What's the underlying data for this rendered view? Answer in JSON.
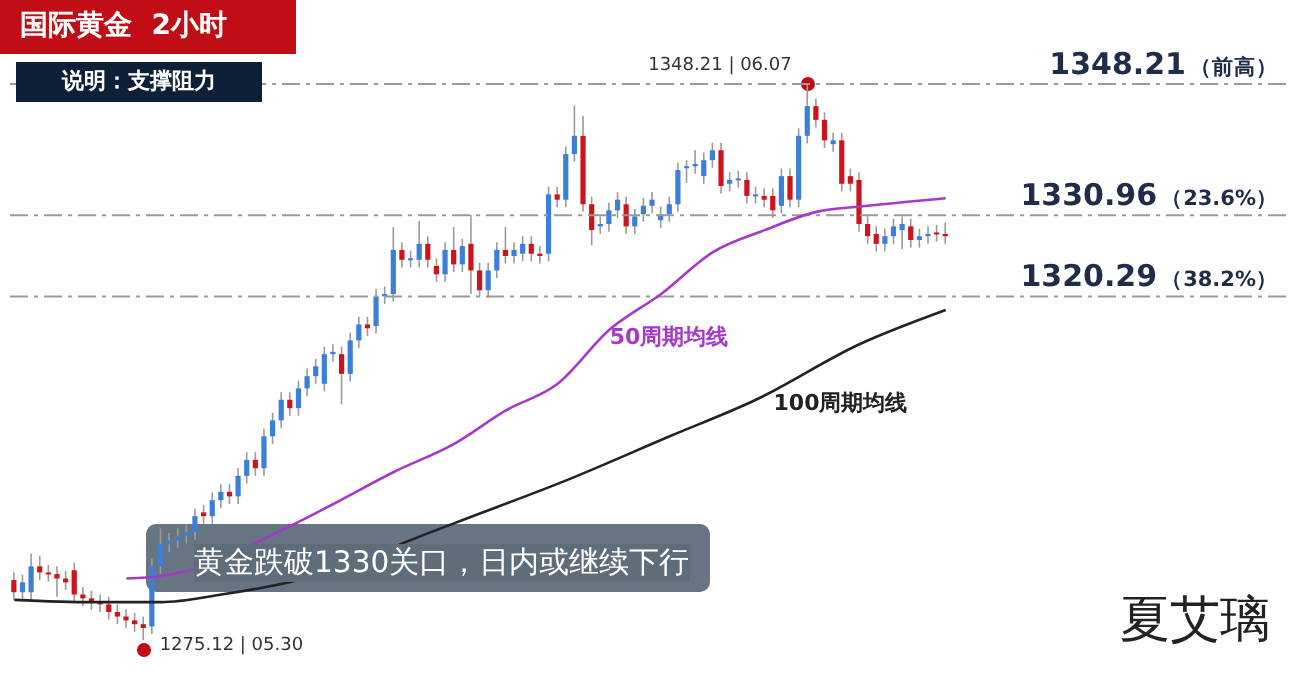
{
  "chart_data": {
    "type": "candlestick",
    "title": "国际黄金  2小时",
    "subtitle": "说明：支撑阻力",
    "tick_labels": false,
    "categories": [
      null,
      null,
      null,
      null,
      null,
      null,
      null,
      null,
      null,
      null,
      null,
      null,
      null,
      null,
      null,
      null,
      null,
      null,
      null,
      null,
      null,
      null,
      null,
      null,
      null,
      null,
      null,
      null,
      null,
      null,
      null,
      null,
      null,
      null,
      null,
      null,
      null,
      null,
      null,
      null,
      null,
      null,
      null,
      null,
      null,
      null,
      null,
      null,
      null,
      null,
      null,
      null,
      null,
      null,
      null,
      null,
      null,
      null,
      null,
      null,
      null,
      null,
      null,
      null,
      null,
      null,
      null,
      null,
      null,
      null,
      null,
      null,
      null,
      null,
      null,
      null,
      null,
      null,
      null,
      null,
      null,
      null,
      null,
      null,
      null,
      null,
      null,
      null,
      null,
      null,
      null,
      null,
      null,
      null,
      null,
      null,
      null,
      null,
      null,
      null,
      null,
      null,
      null,
      null,
      null,
      null,
      null,
      null,
      null
    ],
    "ohlc": [
      [
        1283.0,
        1284.0,
        1280.4,
        1281.4
      ],
      [
        1281.4,
        1283.7,
        1280.4,
        1282.7
      ],
      [
        1281.4,
        1286.5,
        1280.4,
        1284.8
      ],
      [
        1284.8,
        1286.2,
        1283.0,
        1284.0
      ],
      [
        1284.0,
        1285.0,
        1282.8,
        1283.8
      ],
      [
        1283.8,
        1284.8,
        1280.8,
        1283.2
      ],
      [
        1283.2,
        1284.2,
        1281.7,
        1282.7
      ],
      [
        1284.3,
        1285.3,
        1280.1,
        1281.1
      ],
      [
        1281.1,
        1282.1,
        1279.6,
        1280.6
      ],
      [
        1280.6,
        1281.6,
        1279.1,
        1280.1
      ],
      [
        1280.1,
        1281.1,
        1278.8,
        1279.8
      ],
      [
        1279.8,
        1280.8,
        1277.8,
        1278.8
      ],
      [
        1278.8,
        1279.8,
        1277.2,
        1278.2
      ],
      [
        1278.2,
        1279.2,
        1276.7,
        1277.7
      ],
      [
        1277.7,
        1278.7,
        1276.2,
        1277.2
      ],
      [
        1277.2,
        1278.2,
        1275.12,
        1276.7
      ],
      [
        1276.9,
        1285.8,
        1275.9,
        1284.8
      ],
      [
        1284.8,
        1289.8,
        1283.8,
        1287.7
      ],
      [
        1287.7,
        1289.2,
        1286.7,
        1288.2
      ],
      [
        1288.2,
        1289.8,
        1287.2,
        1288.8
      ],
      [
        1288.8,
        1290.3,
        1287.8,
        1289.3
      ],
      [
        1289.3,
        1292.4,
        1288.3,
        1291.4
      ],
      [
        1291.9,
        1292.9,
        1290.4,
        1291.4
      ],
      [
        1291.4,
        1294.5,
        1290.4,
        1293.5
      ],
      [
        1293.5,
        1295.6,
        1292.5,
        1294.6
      ],
      [
        1294.6,
        1295.6,
        1293.0,
        1294.0
      ],
      [
        1294.0,
        1297.7,
        1293.0,
        1296.7
      ],
      [
        1296.7,
        1299.8,
        1295.7,
        1298.8
      ],
      [
        1298.8,
        1299.8,
        1296.7,
        1297.7
      ],
      [
        1297.7,
        1302.9,
        1296.7,
        1301.9
      ],
      [
        1301.9,
        1305.0,
        1300.9,
        1304.0
      ],
      [
        1304.0,
        1307.7,
        1303.0,
        1306.7
      ],
      [
        1306.7,
        1307.7,
        1304.6,
        1305.6
      ],
      [
        1305.6,
        1309.2,
        1304.6,
        1308.2
      ],
      [
        1308.2,
        1310.8,
        1307.2,
        1309.8
      ],
      [
        1309.8,
        1312.1,
        1308.8,
        1311.1
      ],
      [
        1308.8,
        1313.7,
        1307.8,
        1312.7
      ],
      [
        1312.7,
        1314.0,
        1311.7,
        1313.0
      ],
      [
        1312.7,
        1313.7,
        1306.1,
        1310.1
      ],
      [
        1310.1,
        1315.5,
        1309.1,
        1314.5
      ],
      [
        1314.5,
        1317.6,
        1313.5,
        1316.6
      ],
      [
        1316.6,
        1317.6,
        1315.1,
        1316.1
      ],
      [
        1316.4,
        1321.3,
        1315.4,
        1320.3
      ],
      [
        1320.3,
        1321.6,
        1319.3,
        1320.6
      ],
      [
        1320.6,
        1329.4,
        1319.6,
        1326.4
      ],
      [
        1326.4,
        1327.4,
        1324.1,
        1325.1
      ],
      [
        1325.1,
        1326.3,
        1324.1,
        1325.3
      ],
      [
        1325.1,
        1330.2,
        1324.1,
        1327.2
      ],
      [
        1327.2,
        1328.2,
        1324.1,
        1325.1
      ],
      [
        1324.3,
        1325.3,
        1322.2,
        1323.2
      ],
      [
        1323.2,
        1327.4,
        1322.2,
        1326.4
      ],
      [
        1326.4,
        1329.4,
        1323.5,
        1324.5
      ],
      [
        1324.5,
        1327.9,
        1323.5,
        1326.9
      ],
      [
        1327.2,
        1331.0,
        1320.6,
        1323.7
      ],
      [
        1323.7,
        1324.7,
        1320.3,
        1321.1
      ],
      [
        1321.1,
        1324.7,
        1320.1,
        1323.7
      ],
      [
        1323.7,
        1327.4,
        1322.7,
        1326.4
      ],
      [
        1326.4,
        1329.4,
        1324.6,
        1325.6
      ],
      [
        1325.6,
        1327.4,
        1324.6,
        1326.4
      ],
      [
        1325.9,
        1328.2,
        1324.9,
        1327.2
      ],
      [
        1327.2,
        1328.2,
        1324.9,
        1325.9
      ],
      [
        1325.9,
        1326.9,
        1324.6,
        1325.6
      ],
      [
        1325.9,
        1334.7,
        1324.9,
        1333.7
      ],
      [
        1333.7,
        1334.7,
        1332.0,
        1333.0
      ],
      [
        1333.0,
        1340.0,
        1332.0,
        1339.0
      ],
      [
        1339.0,
        1345.4,
        1338.0,
        1341.4
      ],
      [
        1341.4,
        1344.0,
        1331.4,
        1332.4
      ],
      [
        1332.4,
        1333.4,
        1327.0,
        1329.0
      ],
      [
        1329.5,
        1330.8,
        1328.5,
        1329.8
      ],
      [
        1329.8,
        1332.6,
        1328.8,
        1331.6
      ],
      [
        1331.6,
        1334.0,
        1330.6,
        1333.0
      ],
      [
        1332.4,
        1333.4,
        1328.5,
        1329.5
      ],
      [
        1329.5,
        1331.8,
        1328.5,
        1330.8
      ],
      [
        1331.1,
        1333.2,
        1330.1,
        1332.2
      ],
      [
        1332.2,
        1334.0,
        1331.2,
        1333.0
      ],
      [
        1330.3,
        1332.1,
        1329.3,
        1331.1
      ],
      [
        1331.1,
        1333.4,
        1330.1,
        1332.4
      ],
      [
        1332.4,
        1337.9,
        1331.4,
        1336.9
      ],
      [
        1337.2,
        1338.2,
        1335.2,
        1337.4
      ],
      [
        1337.4,
        1339.5,
        1336.4,
        1337.7
      ],
      [
        1336.1,
        1339.2,
        1335.1,
        1338.2
      ],
      [
        1338.2,
        1340.5,
        1337.2,
        1339.5
      ],
      [
        1339.5,
        1340.5,
        1333.8,
        1334.8
      ],
      [
        1335.1,
        1336.6,
        1334.1,
        1335.6
      ],
      [
        1335.6,
        1336.8,
        1334.6,
        1335.8
      ],
      [
        1335.6,
        1336.6,
        1332.5,
        1333.5
      ],
      [
        1333.5,
        1334.7,
        1332.5,
        1333.7
      ],
      [
        1333.5,
        1334.5,
        1332.0,
        1333.0
      ],
      [
        1333.5,
        1334.5,
        1330.6,
        1331.6
      ],
      [
        1332.2,
        1337.1,
        1331.2,
        1336.1
      ],
      [
        1336.1,
        1337.1,
        1332.0,
        1333.0
      ],
      [
        1333.0,
        1342.4,
        1332.0,
        1341.4
      ],
      [
        1341.4,
        1348.21,
        1340.4,
        1345.3
      ],
      [
        1345.3,
        1346.3,
        1342.5,
        1343.5
      ],
      [
        1343.5,
        1344.5,
        1339.8,
        1340.8
      ],
      [
        1340.3,
        1341.8,
        1339.3,
        1340.8
      ],
      [
        1340.8,
        1341.8,
        1334.1,
        1335.1
      ],
      [
        1336.1,
        1337.1,
        1334.1,
        1335.1
      ],
      [
        1335.6,
        1336.6,
        1328.8,
        1329.8
      ],
      [
        1329.8,
        1330.8,
        1327.2,
        1328.2
      ],
      [
        1328.5,
        1329.5,
        1326.2,
        1327.2
      ],
      [
        1327.2,
        1329.2,
        1326.2,
        1328.2
      ],
      [
        1328.2,
        1330.5,
        1327.2,
        1329.5
      ],
      [
        1329.0,
        1330.8,
        1326.5,
        1329.8
      ],
      [
        1329.5,
        1330.5,
        1326.7,
        1327.7
      ],
      [
        1327.7,
        1329.2,
        1326.7,
        1328.2
      ],
      [
        1328.2,
        1329.5,
        1327.2,
        1328.5
      ],
      [
        1328.7,
        1329.7,
        1327.5,
        1328.5
      ],
      [
        1328.5,
        1330.0,
        1327.2,
        1328.2
      ]
    ],
    "colors": [
      "#d0121b",
      "#3b7fd9",
      "#3b7fd9",
      "#d0121b",
      "#d0121b",
      "#d0121b",
      "#d0121b",
      "#d0121b",
      "#d0121b",
      "#d0121b",
      "#d0121b",
      "#d0121b",
      "#d0121b",
      "#d0121b",
      "#d0121b",
      "#d0121b",
      "#3b7fd9",
      "#3b7fd9",
      "#3b7fd9",
      "#3b7fd9",
      "#3b7fd9",
      "#3b7fd9",
      "#d0121b",
      "#3b7fd9",
      "#3b7fd9",
      "#d0121b",
      "#3b7fd9",
      "#3b7fd9",
      "#d0121b",
      "#3b7fd9",
      "#3b7fd9",
      "#3b7fd9",
      "#d0121b",
      "#3b7fd9",
      "#3b7fd9",
      "#3b7fd9",
      "#3b7fd9",
      "#3b7fd9",
      "#d0121b",
      "#3b7fd9",
      "#3b7fd9",
      "#d0121b",
      "#3b7fd9",
      "#3b7fd9",
      "#3b7fd9",
      "#d0121b",
      "#3b7fd9",
      "#3b7fd9",
      "#d0121b",
      "#d0121b",
      "#3b7fd9",
      "#d0121b",
      "#3b7fd9",
      "#d0121b",
      "#d0121b",
      "#3b7fd9",
      "#3b7fd9",
      "#d0121b",
      "#3b7fd9",
      "#3b7fd9",
      "#d0121b",
      "#d0121b",
      "#3b7fd9",
      "#d0121b",
      "#3b7fd9",
      "#3b7fd9",
      "#d0121b",
      "#d0121b",
      "#3b7fd9",
      "#3b7fd9",
      "#3b7fd9",
      "#d0121b",
      "#3b7fd9",
      "#3b7fd9",
      "#3b7fd9",
      "#3b7fd9",
      "#3b7fd9",
      "#3b7fd9",
      "#3b7fd9",
      "#3b7fd9",
      "#3b7fd9",
      "#3b7fd9",
      "#d0121b",
      "#3b7fd9",
      "#3b7fd9",
      "#d0121b",
      "#3b7fd9",
      "#d0121b",
      "#d0121b",
      "#3b7fd9",
      "#d0121b",
      "#3b7fd9",
      "#3b7fd9",
      "#d0121b",
      "#d0121b",
      "#3b7fd9",
      "#d0121b",
      "#d0121b",
      "#d0121b",
      "#d0121b",
      "#d0121b",
      "#3b7fd9",
      "#3b7fd9",
      "#3b7fd9",
      "#d0121b",
      "#3b7fd9",
      "#3b7fd9",
      "#d0121b",
      "#d0121b"
    ],
    "series": [
      {
        "name": "50周期均线",
        "type": "line",
        "color": "#a53ac9",
        "values": [
          null,
          null,
          null,
          null,
          null,
          null,
          null,
          null,
          null,
          null,
          null,
          null,
          null,
          1283.2,
          null,
          null,
          null,
          1283.5,
          null,
          null,
          null,
          null,
          null,
          null,
          null,
          null,
          null,
          null,
          null,
          null,
          null,
          null,
          1290.1,
          null,
          null,
          null,
          null,
          1293.0,
          null,
          null,
          null,
          null,
          null,
          null,
          1297.2,
          null,
          null,
          null,
          null,
          null,
          null,
          1300.9,
          null,
          null,
          null,
          null,
          null,
          1305.3,
          null,
          null,
          null,
          null,
          null,
          1308.8,
          null,
          null,
          null,
          null,
          null,
          1315.9,
          null,
          null,
          null,
          null,
          null,
          1320.6,
          null,
          null,
          null,
          null,
          null,
          1326.1,
          null,
          null,
          null,
          null,
          null,
          1329.0,
          null,
          null,
          null,
          null,
          null,
          1331.4,
          null,
          null,
          null,
          null,
          null,
          1332.2,
          null,
          null,
          null,
          null,
          null,
          null,
          null,
          null,
          1333.2
        ]
      },
      {
        "name": "100周期均线",
        "type": "line",
        "color": "#222222",
        "values": [
          1280.4,
          null,
          null,
          null,
          null,
          null,
          null,
          null,
          null,
          1280.1,
          null,
          null,
          null,
          null,
          null,
          null,
          null,
          1280.1,
          null,
          null,
          null,
          null,
          null,
          null,
          1281.1,
          null,
          null,
          null,
          null,
          null,
          null,
          null,
          null,
          1283.0,
          null,
          null,
          null,
          null,
          null,
          null,
          null,
          null,
          null,
          null,
          null,
          null,
          null,
          null,
          null,
          1289.6,
          null,
          null,
          1290.9,
          null,
          null,
          null,
          null,
          null,
          null,
          null,
          null,
          null,
          null,
          null,
          1296.1,
          null,
          null,
          null,
          null,
          null,
          null,
          null,
          null,
          null,
          null,
          null,
          1301.9,
          null,
          null,
          null,
          null,
          null,
          null,
          null,
          null,
          null,
          1306.7,
          null,
          null,
          null,
          null,
          null,
          null,
          null,
          null,
          null,
          null,
          null,
          1314.0,
          null,
          null,
          null,
          null,
          null,
          null,
          null,
          null,
          null,
          1318.5
        ]
      }
    ],
    "ref_lines": [
      {
        "axis": "y",
        "value": 1348.21,
        "label": "1348.21（前高）",
        "color": "#9a9a9a",
        "line_style": "dashed"
      },
      {
        "axis": "y",
        "value": 1330.96,
        "label": "1330.96（23.6%）",
        "color": "#9a9a9a",
        "line_style": "dashed"
      },
      {
        "axis": "y",
        "value": 1320.29,
        "label": "1320.29（38.2%）",
        "color": "#9a9a9a",
        "line_style": "dashed"
      }
    ],
    "annotations": [
      "1348.21 | 06.07",
      "1275.12 | 05.30",
      "黄金跌破1330关口，日内或继续下行",
      "夏艾璃"
    ]
  }
}
